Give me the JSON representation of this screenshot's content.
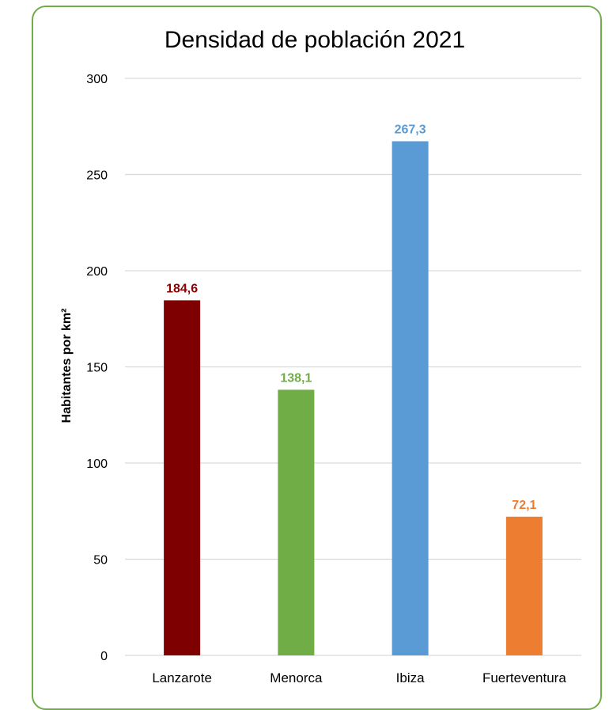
{
  "chart_data": {
    "type": "bar",
    "title": "Densidad de población 2021",
    "ylabel": "Habitantes por km²",
    "xlabel": "",
    "ylim": [
      0,
      300
    ],
    "yticks": [
      0,
      50,
      100,
      150,
      200,
      250,
      300
    ],
    "grid": true,
    "categories": [
      "Lanzarote",
      "Menorca",
      "Ibiza",
      "Fuerteventura"
    ],
    "values": [
      184.6,
      138.1,
      267.3,
      72.1
    ],
    "value_labels": [
      "184,6",
      "138,1",
      "267,3",
      "72,1"
    ],
    "colors": [
      "#7F0000",
      "#70AD47",
      "#5B9BD5",
      "#ED7D31"
    ],
    "label_colors": [
      "#8B0000",
      "#70AD47",
      "#5B9BD5",
      "#ED7D31"
    ]
  },
  "frame": {
    "border_color": "#70AD47"
  }
}
